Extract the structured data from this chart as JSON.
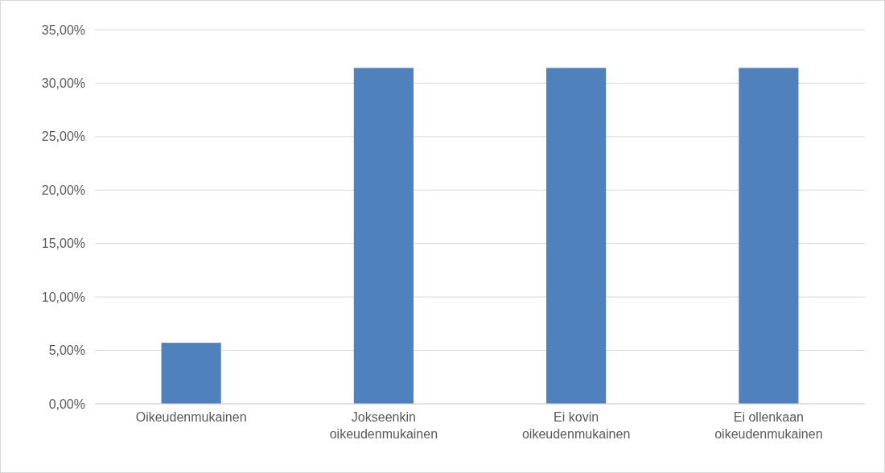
{
  "chart_data": {
    "type": "bar",
    "categories": [
      "Oikeudenmukainen",
      "Jokseenkin oikeudenmukainen",
      "Ei kovin oikeudenmukainen",
      "Ei ollenkaan oikeudenmukainen"
    ],
    "values": [
      5.71,
      31.43,
      31.43,
      31.43
    ],
    "color": "#4f81bd",
    "ylim": [
      0,
      35
    ],
    "yticks": [
      {
        "value": 0,
        "label": "0,00%"
      },
      {
        "value": 5,
        "label": "5,00%"
      },
      {
        "value": 10,
        "label": "10,00%"
      },
      {
        "value": 15,
        "label": "15,00%"
      },
      {
        "value": 20,
        "label": "20,00%"
      },
      {
        "value": 25,
        "label": "25,00%"
      },
      {
        "value": 30,
        "label": "30,00%"
      },
      {
        "value": 35,
        "label": "35,00%"
      }
    ],
    "grid": "y"
  }
}
